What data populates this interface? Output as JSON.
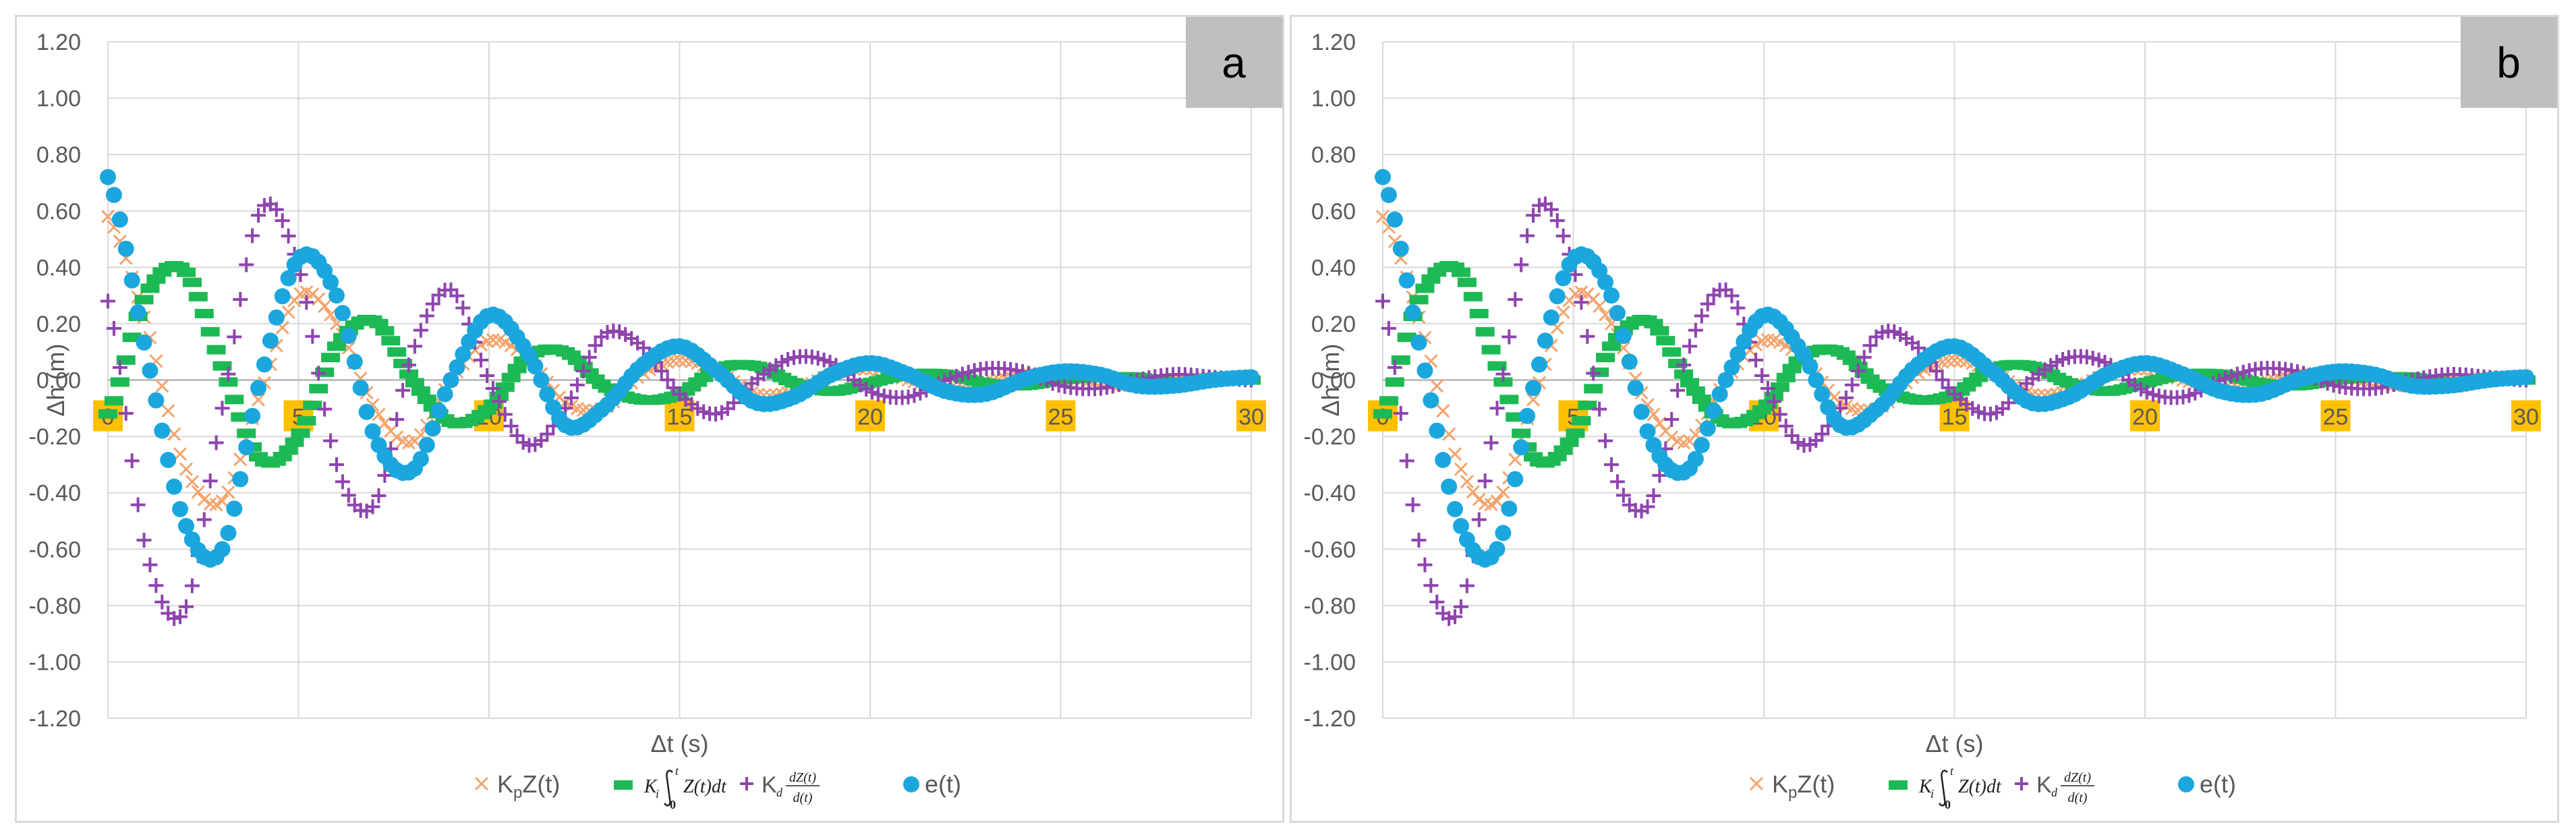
{
  "chart_data": [
    {
      "panel": "a",
      "type": "scatter",
      "xlabel": "Δt (s)",
      "ylabel": "Δh (m)",
      "xlim": [
        0,
        30
      ],
      "ylim": [
        -1.2,
        1.2
      ],
      "x_ticks": [
        "0",
        "5",
        "10",
        "15",
        "20",
        "25",
        "30"
      ],
      "y_ticks": [
        "1.20",
        "1.00",
        "0.80",
        "0.60",
        "0.40",
        "0.20",
        "0.00",
        "-0.20",
        "-0.40",
        "-0.60",
        "-0.80",
        "-1.00",
        "-1.20"
      ],
      "legend": [
        "KpZ(t)",
        "Ki∫Z(t)dt",
        "Kd dZ(t)/d(t)",
        "e(t)"
      ],
      "series": [
        {
          "name": "KpZ(t)",
          "marker": "x",
          "color": "#f4a46d",
          "x": [
            0.0,
            1.0,
            2.0,
            3.0,
            4.0,
            5.0,
            6.0,
            7.0,
            8.0,
            9.0,
            10.0,
            11.0,
            12.0,
            13.0,
            14.0,
            15.0,
            16.0,
            17.0,
            18.0,
            19.0,
            20.0,
            21.0,
            22.0,
            23.0,
            24.0,
            25.0,
            26.0,
            27.0,
            28.0,
            29.0,
            30.0
          ],
          "values": [
            0.58,
            0.2,
            -0.3,
            -0.43,
            -0.05,
            0.3,
            0.2,
            -0.1,
            -0.22,
            0.0,
            0.14,
            0.08,
            -0.08,
            -0.1,
            0.02,
            0.07,
            0.03,
            -0.05,
            -0.04,
            0.02,
            0.04,
            0.0,
            -0.03,
            -0.01,
            0.02,
            0.02,
            -0.01,
            -0.02,
            0.0,
            0.01,
            0.01
          ]
        },
        {
          "name": "Ki∫Z(t)dt",
          "marker": "dash",
          "color": "#1db954",
          "x": [
            0.0,
            1.0,
            2.0,
            3.0,
            4.0,
            5.0,
            6.0,
            7.0,
            8.0,
            9.0,
            10.0,
            11.0,
            12.0,
            13.0,
            14.0,
            15.0,
            16.0,
            17.0,
            18.0,
            19.0,
            20.0,
            21.0,
            22.0,
            23.0,
            24.0,
            25.0,
            26.0,
            27.0,
            28.0,
            29.0,
            30.0
          ],
          "values": [
            -0.12,
            0.3,
            0.39,
            0.05,
            -0.28,
            -0.2,
            0.12,
            0.21,
            0.0,
            -0.15,
            -0.1,
            0.08,
            0.1,
            -0.02,
            -0.07,
            -0.05,
            0.04,
            0.05,
            -0.01,
            -0.04,
            -0.01,
            0.02,
            0.02,
            -0.01,
            -0.02,
            0.0,
            0.01,
            0.01,
            -0.01,
            0.0,
            0.0
          ]
        },
        {
          "name": "Kd dZ(t)/d(t)",
          "marker": "plus",
          "color": "#8e44ad",
          "x": [
            0.0,
            1.0,
            2.0,
            3.0,
            4.0,
            5.0,
            6.0,
            7.0,
            8.0,
            9.0,
            10.0,
            11.0,
            12.0,
            13.0,
            14.0,
            15.0,
            16.0,
            17.0,
            18.0,
            19.0,
            20.0,
            21.0,
            22.0,
            23.0,
            24.0,
            25.0,
            26.0,
            27.0,
            28.0,
            29.0,
            30.0
          ],
          "values": [
            0.28,
            -0.6,
            -0.82,
            -0.1,
            0.6,
            0.4,
            -0.3,
            -0.44,
            0.1,
            0.32,
            0.0,
            -0.23,
            -0.1,
            0.16,
            0.12,
            -0.05,
            -0.12,
            0.0,
            0.08,
            0.06,
            -0.04,
            -0.06,
            0.0,
            0.04,
            0.03,
            -0.02,
            -0.03,
            0.0,
            0.02,
            0.01,
            0.0
          ]
        },
        {
          "name": "e(t)",
          "marker": "dot",
          "color": "#1ba7de",
          "x": [
            0.0,
            1.0,
            2.0,
            3.0,
            4.0,
            5.0,
            6.0,
            7.0,
            8.0,
            9.0,
            10.0,
            11.0,
            12.0,
            13.0,
            14.0,
            15.0,
            16.0,
            17.0,
            18.0,
            19.0,
            20.0,
            21.0,
            22.0,
            23.0,
            24.0,
            25.0,
            26.0,
            27.0,
            28.0,
            29.0,
            30.0
          ],
          "values": [
            0.72,
            0.1,
            -0.5,
            -0.6,
            0.0,
            0.43,
            0.3,
            -0.2,
            -0.32,
            0.0,
            0.23,
            0.1,
            -0.16,
            -0.1,
            0.05,
            0.12,
            0.03,
            -0.08,
            -0.06,
            0.02,
            0.06,
            0.02,
            -0.04,
            -0.05,
            0.0,
            0.03,
            0.02,
            -0.02,
            -0.02,
            0.0,
            0.01
          ]
        }
      ]
    },
    {
      "panel": "b",
      "type": "scatter",
      "xlabel": "Δt (s)",
      "ylabel": "Δh (m)",
      "xlim": [
        0,
        30
      ],
      "ylim": [
        -1.2,
        1.2
      ],
      "x_ticks": [
        "0",
        "5",
        "10",
        "15",
        "20",
        "25",
        "30"
      ],
      "y_ticks": [
        "1.20",
        "1.00",
        "0.80",
        "0.60",
        "0.40",
        "0.20",
        "0.00",
        "-0.20",
        "-0.40",
        "-0.60",
        "-0.80",
        "-1.00",
        "-1.20"
      ],
      "legend": [
        "KpZ(t)",
        "Ki∫Z(t)dt",
        "Kd dZ(t)/d(t)",
        "e(t)"
      ],
      "series": [
        {
          "name": "KpZ(t)",
          "marker": "x",
          "color": "#f4a46d",
          "x": [
            0.0,
            1.0,
            2.0,
            3.0,
            4.0,
            5.0,
            6.0,
            7.0,
            8.0,
            9.0,
            10.0,
            11.0,
            12.0,
            13.0,
            14.0,
            15.0,
            16.0,
            17.0,
            18.0,
            19.0,
            20.0,
            21.0,
            22.0,
            23.0,
            24.0,
            25.0,
            26.0,
            27.0,
            28.0,
            29.0,
            30.0
          ],
          "values": [
            0.58,
            0.2,
            -0.3,
            -0.43,
            -0.05,
            0.3,
            0.2,
            -0.1,
            -0.22,
            0.0,
            0.14,
            0.08,
            -0.08,
            -0.1,
            0.02,
            0.07,
            0.03,
            -0.05,
            -0.04,
            0.02,
            0.04,
            0.0,
            -0.03,
            -0.01,
            0.02,
            0.02,
            -0.01,
            -0.02,
            0.0,
            0.01,
            0.01
          ]
        },
        {
          "name": "Ki∫Z(t)dt",
          "marker": "dash",
          "color": "#1db954",
          "x": [
            0.0,
            1.0,
            2.0,
            3.0,
            4.0,
            5.0,
            6.0,
            7.0,
            8.0,
            9.0,
            10.0,
            11.0,
            12.0,
            13.0,
            14.0,
            15.0,
            16.0,
            17.0,
            18.0,
            19.0,
            20.0,
            21.0,
            22.0,
            23.0,
            24.0,
            25.0,
            26.0,
            27.0,
            28.0,
            29.0,
            30.0
          ],
          "values": [
            -0.12,
            0.3,
            0.39,
            0.05,
            -0.28,
            -0.2,
            0.12,
            0.21,
            0.0,
            -0.15,
            -0.1,
            0.08,
            0.1,
            -0.02,
            -0.07,
            -0.05,
            0.04,
            0.05,
            -0.01,
            -0.04,
            -0.01,
            0.02,
            0.02,
            -0.01,
            -0.02,
            0.0,
            0.01,
            0.01,
            -0.01,
            0.0,
            0.0
          ]
        },
        {
          "name": "Kd dZ(t)/d(t)",
          "marker": "plus",
          "color": "#8e44ad",
          "x": [
            0.0,
            1.0,
            2.0,
            3.0,
            4.0,
            5.0,
            6.0,
            7.0,
            8.0,
            9.0,
            10.0,
            11.0,
            12.0,
            13.0,
            14.0,
            15.0,
            16.0,
            17.0,
            18.0,
            19.0,
            20.0,
            21.0,
            22.0,
            23.0,
            24.0,
            25.0,
            26.0,
            27.0,
            28.0,
            29.0,
            30.0
          ],
          "values": [
            0.28,
            -0.6,
            -0.82,
            -0.1,
            0.6,
            0.4,
            -0.3,
            -0.44,
            0.1,
            0.32,
            0.0,
            -0.23,
            -0.1,
            0.16,
            0.12,
            -0.05,
            -0.12,
            0.0,
            0.08,
            0.06,
            -0.04,
            -0.06,
            0.0,
            0.04,
            0.03,
            -0.02,
            -0.03,
            0.0,
            0.02,
            0.01,
            0.0
          ]
        },
        {
          "name": "e(t)",
          "marker": "dot",
          "color": "#1ba7de",
          "x": [
            0.0,
            1.0,
            2.0,
            3.0,
            4.0,
            5.0,
            6.0,
            7.0,
            8.0,
            9.0,
            10.0,
            11.0,
            12.0,
            13.0,
            14.0,
            15.0,
            16.0,
            17.0,
            18.0,
            19.0,
            20.0,
            21.0,
            22.0,
            23.0,
            24.0,
            25.0,
            26.0,
            27.0,
            28.0,
            29.0,
            30.0
          ],
          "values": [
            0.72,
            0.1,
            -0.5,
            -0.6,
            0.0,
            0.43,
            0.3,
            -0.2,
            -0.32,
            0.0,
            0.23,
            0.1,
            -0.16,
            -0.1,
            0.05,
            0.12,
            0.03,
            -0.08,
            -0.06,
            0.02,
            0.06,
            0.02,
            -0.04,
            -0.05,
            0.0,
            0.03,
            0.02,
            -0.02,
            -0.02,
            0.0,
            0.01
          ]
        }
      ]
    }
  ],
  "legend_parts": {
    "kp_main": "K",
    "kp_sub": "p",
    "kp_tail": "Z(t)",
    "ki_main": "K",
    "ki_sub": "i",
    "ki_upper": "t",
    "ki_lower": "0",
    "ki_tail": "Z(t)dt",
    "kd_main": "K",
    "kd_sub": "d",
    "kd_num": "dZ(t)",
    "kd_den": "d(t)",
    "e_label": "e(t)"
  },
  "colors": {
    "kp": "#f4a46d",
    "ki": "#1db954",
    "kd": "#8e44ad",
    "e": "#1ba7de",
    "grid": "#d9d9d9",
    "tick_bg": "#ffc000",
    "corner_bg": "#bfbfbf",
    "text": "#595959"
  }
}
